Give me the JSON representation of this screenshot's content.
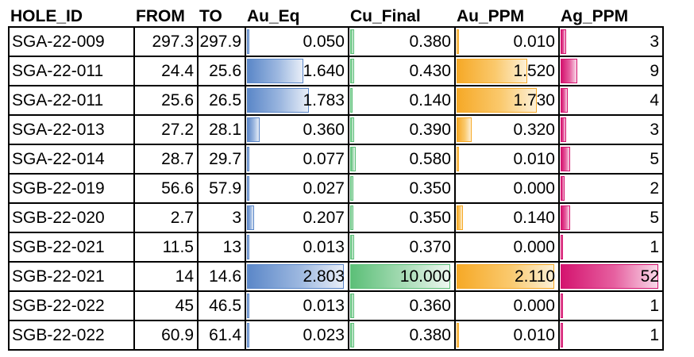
{
  "headers": [
    "HOLE_ID",
    "FROM",
    "TO",
    "Au_Eq",
    "Cu_Final",
    "Au_PPM",
    "Ag_PPM"
  ],
  "colors": {
    "au_eq_bar": "#5b87c8",
    "cu_final_bar": "#5cbf78",
    "au_ppm_bar": "#f6a927",
    "ag_ppm_bar": "#d4146f"
  },
  "rows": [
    {
      "hole_id": "SGA-22-009",
      "from": "297.3",
      "to": "297.9",
      "au_eq": "0.050",
      "cu_final": "0.380",
      "au_ppm": "0.010",
      "ag_ppm": "3"
    },
    {
      "hole_id": "SGA-22-011",
      "from": "24.4",
      "to": "25.6",
      "au_eq": "1.640",
      "cu_final": "0.430",
      "au_ppm": "1.520",
      "ag_ppm": "9"
    },
    {
      "hole_id": "SGA-22-011",
      "from": "25.6",
      "to": "26.5",
      "au_eq": "1.783",
      "cu_final": "0.140",
      "au_ppm": "1.730",
      "ag_ppm": "4"
    },
    {
      "hole_id": "SGA-22-013",
      "from": "27.2",
      "to": "28.1",
      "au_eq": "0.360",
      "cu_final": "0.390",
      "au_ppm": "0.320",
      "ag_ppm": "3"
    },
    {
      "hole_id": "SGA-22-014",
      "from": "28.7",
      "to": "29.7",
      "au_eq": "0.077",
      "cu_final": "0.580",
      "au_ppm": "0.010",
      "ag_ppm": "5"
    },
    {
      "hole_id": "SGB-22-019",
      "from": "56.6",
      "to": "57.9",
      "au_eq": "0.027",
      "cu_final": "0.350",
      "au_ppm": "0.000",
      "ag_ppm": "2"
    },
    {
      "hole_id": "SGB-22-020",
      "from": "2.7",
      "to": "3",
      "au_eq": "0.207",
      "cu_final": "0.350",
      "au_ppm": "0.140",
      "ag_ppm": "5"
    },
    {
      "hole_id": "SGB-22-021",
      "from": "11.5",
      "to": "13",
      "au_eq": "0.013",
      "cu_final": "0.370",
      "au_ppm": "0.000",
      "ag_ppm": "1"
    },
    {
      "hole_id": "SGB-22-021",
      "from": "14",
      "to": "14.6",
      "au_eq": "2.803",
      "cu_final": "10.000",
      "au_ppm": "2.110",
      "ag_ppm": "52"
    },
    {
      "hole_id": "SGB-22-022",
      "from": "45",
      "to": "46.5",
      "au_eq": "0.013",
      "cu_final": "0.360",
      "au_ppm": "0.000",
      "ag_ppm": "1"
    },
    {
      "hole_id": "SGB-22-022",
      "from": "60.9",
      "to": "61.4",
      "au_eq": "0.023",
      "cu_final": "0.380",
      "au_ppm": "0.010",
      "ag_ppm": "1"
    }
  ],
  "data_bar_fractions": {
    "au_eq": [
      0.02,
      0.585,
      0.636,
      0.128,
      0.027,
      0.01,
      0.074,
      0.005,
      1.0,
      0.005,
      0.008
    ],
    "cu_final": [
      0.038,
      0.043,
      0.014,
      0.039,
      0.058,
      0.035,
      0.035,
      0.037,
      1.0,
      0.036,
      0.038
    ],
    "au_ppm": [
      0.005,
      0.72,
      0.82,
      0.152,
      0.005,
      0.0,
      0.066,
      0.0,
      1.0,
      0.0,
      0.005
    ],
    "ag_ppm": [
      0.058,
      0.173,
      0.077,
      0.058,
      0.096,
      0.038,
      0.096,
      0.019,
      1.0,
      0.019,
      0.019
    ]
  }
}
